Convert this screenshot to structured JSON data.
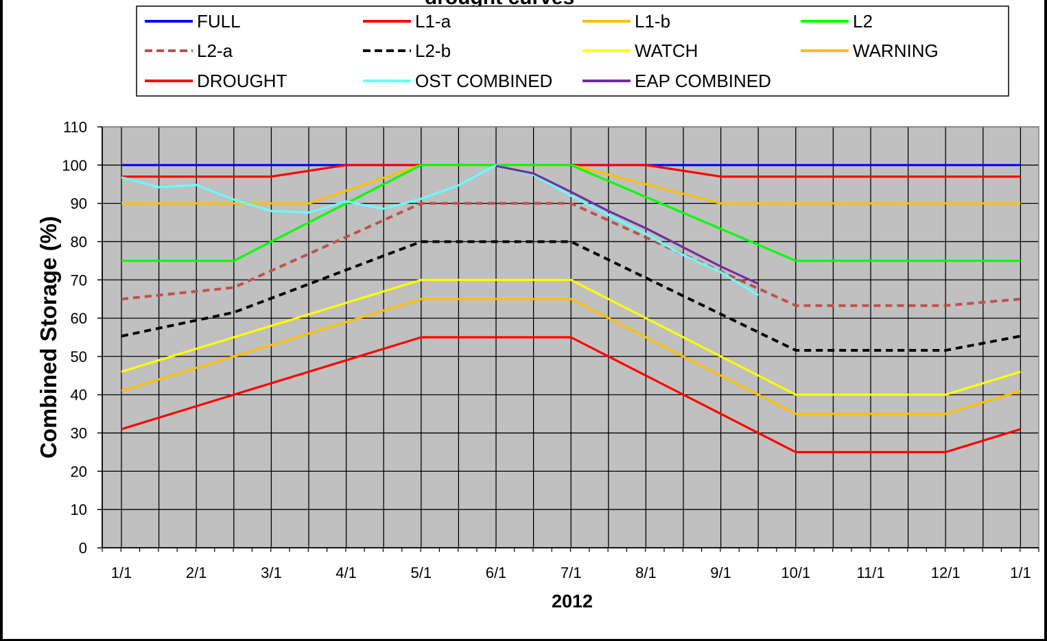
{
  "chart_data": {
    "type": "line",
    "title": "drought curves",
    "xlabel": "2012",
    "ylabel": "Combined Storage (%)",
    "ylim": [
      0,
      110
    ],
    "yticks": [
      0,
      10,
      20,
      30,
      40,
      50,
      60,
      70,
      80,
      90,
      100,
      110
    ],
    "xticks": [
      "1/1",
      "2/1",
      "3/1",
      "4/1",
      "5/1",
      "6/1",
      "7/1",
      "8/1",
      "9/1",
      "10/1",
      "11/1",
      "12/1",
      "1/1"
    ],
    "grid": true,
    "legend_position": "top",
    "plot_background": "#c0c0c0",
    "series": [
      {
        "name": "FULL",
        "color": "#0000ff",
        "dash": false,
        "points": [
          [
            0,
            100
          ],
          [
            12,
            100
          ]
        ]
      },
      {
        "name": "L1-a",
        "color": "#ff0000",
        "dash": false,
        "points": [
          [
            0,
            97
          ],
          [
            2,
            97
          ],
          [
            3,
            100
          ],
          [
            7,
            100
          ],
          [
            8,
            97
          ],
          [
            12,
            97
          ]
        ]
      },
      {
        "name": "L1-b",
        "color": "#ffc000",
        "dash": false,
        "points": [
          [
            0,
            90
          ],
          [
            2.5,
            90
          ],
          [
            4,
            100
          ],
          [
            6,
            100
          ],
          [
            8,
            90
          ],
          [
            12,
            90
          ]
        ]
      },
      {
        "name": "L2",
        "color": "#00ff00",
        "dash": false,
        "points": [
          [
            0,
            75
          ],
          [
            1.5,
            75
          ],
          [
            4,
            100
          ],
          [
            6,
            100
          ],
          [
            9,
            75
          ],
          [
            12,
            75
          ]
        ]
      },
      {
        "name": "L2-a",
        "color": "#c0504d",
        "dash": true,
        "points": [
          [
            0,
            65
          ],
          [
            1.5,
            68
          ],
          [
            4,
            90
          ],
          [
            6,
            90
          ],
          [
            9,
            63.3
          ],
          [
            11,
            63.3
          ],
          [
            12,
            65
          ]
        ]
      },
      {
        "name": "L2-b",
        "color": "#000000",
        "dash": true,
        "points": [
          [
            0,
            55.3
          ],
          [
            1.5,
            61.5
          ],
          [
            4,
            80
          ],
          [
            6,
            80
          ],
          [
            9,
            51.6
          ],
          [
            11,
            51.6
          ],
          [
            12,
            55.3
          ]
        ]
      },
      {
        "name": "WATCH",
        "color": "#ffff00",
        "dash": false,
        "points": [
          [
            0,
            46
          ],
          [
            4,
            70
          ],
          [
            6,
            70
          ],
          [
            9,
            40
          ],
          [
            11,
            40
          ],
          [
            12,
            46
          ]
        ]
      },
      {
        "name": "WARNING",
        "color": "#ffc000",
        "dash": false,
        "points": [
          [
            0,
            41
          ],
          [
            4,
            65
          ],
          [
            6,
            65
          ],
          [
            9,
            35
          ],
          [
            11,
            35
          ],
          [
            12,
            41
          ]
        ]
      },
      {
        "name": "DROUGHT",
        "color": "#ff0000",
        "dash": false,
        "points": [
          [
            0,
            31
          ],
          [
            4,
            55
          ],
          [
            6,
            55
          ],
          [
            9,
            25
          ],
          [
            11,
            25
          ],
          [
            12,
            31
          ]
        ]
      },
      {
        "name": "OST COMBINED",
        "color": "#66ffff",
        "dash": false,
        "points": [
          [
            0,
            96.8
          ],
          [
            0.5,
            94.2
          ],
          [
            1,
            94.8
          ],
          [
            1.5,
            91
          ],
          [
            2,
            88
          ],
          [
            2.5,
            87.6
          ],
          [
            3,
            90.5
          ],
          [
            3.5,
            88.6
          ],
          [
            4,
            91.2
          ],
          [
            4.5,
            94.7
          ],
          [
            5,
            100
          ],
          [
            5.5,
            97.5
          ],
          [
            6,
            92
          ],
          [
            6.5,
            87
          ],
          [
            7,
            82
          ],
          [
            7.5,
            76.5
          ],
          [
            8,
            72
          ],
          [
            8.5,
            66
          ]
        ]
      },
      {
        "name": "EAP COMBINED",
        "color": "#7030a0",
        "dash": false,
        "points": [
          [
            5,
            99.8
          ],
          [
            5.5,
            97.8
          ],
          [
            6,
            93
          ],
          [
            6.5,
            88
          ],
          [
            7,
            83.5
          ],
          [
            7.5,
            78.5
          ],
          [
            8,
            73.5
          ],
          [
            8.5,
            69
          ]
        ]
      }
    ]
  }
}
